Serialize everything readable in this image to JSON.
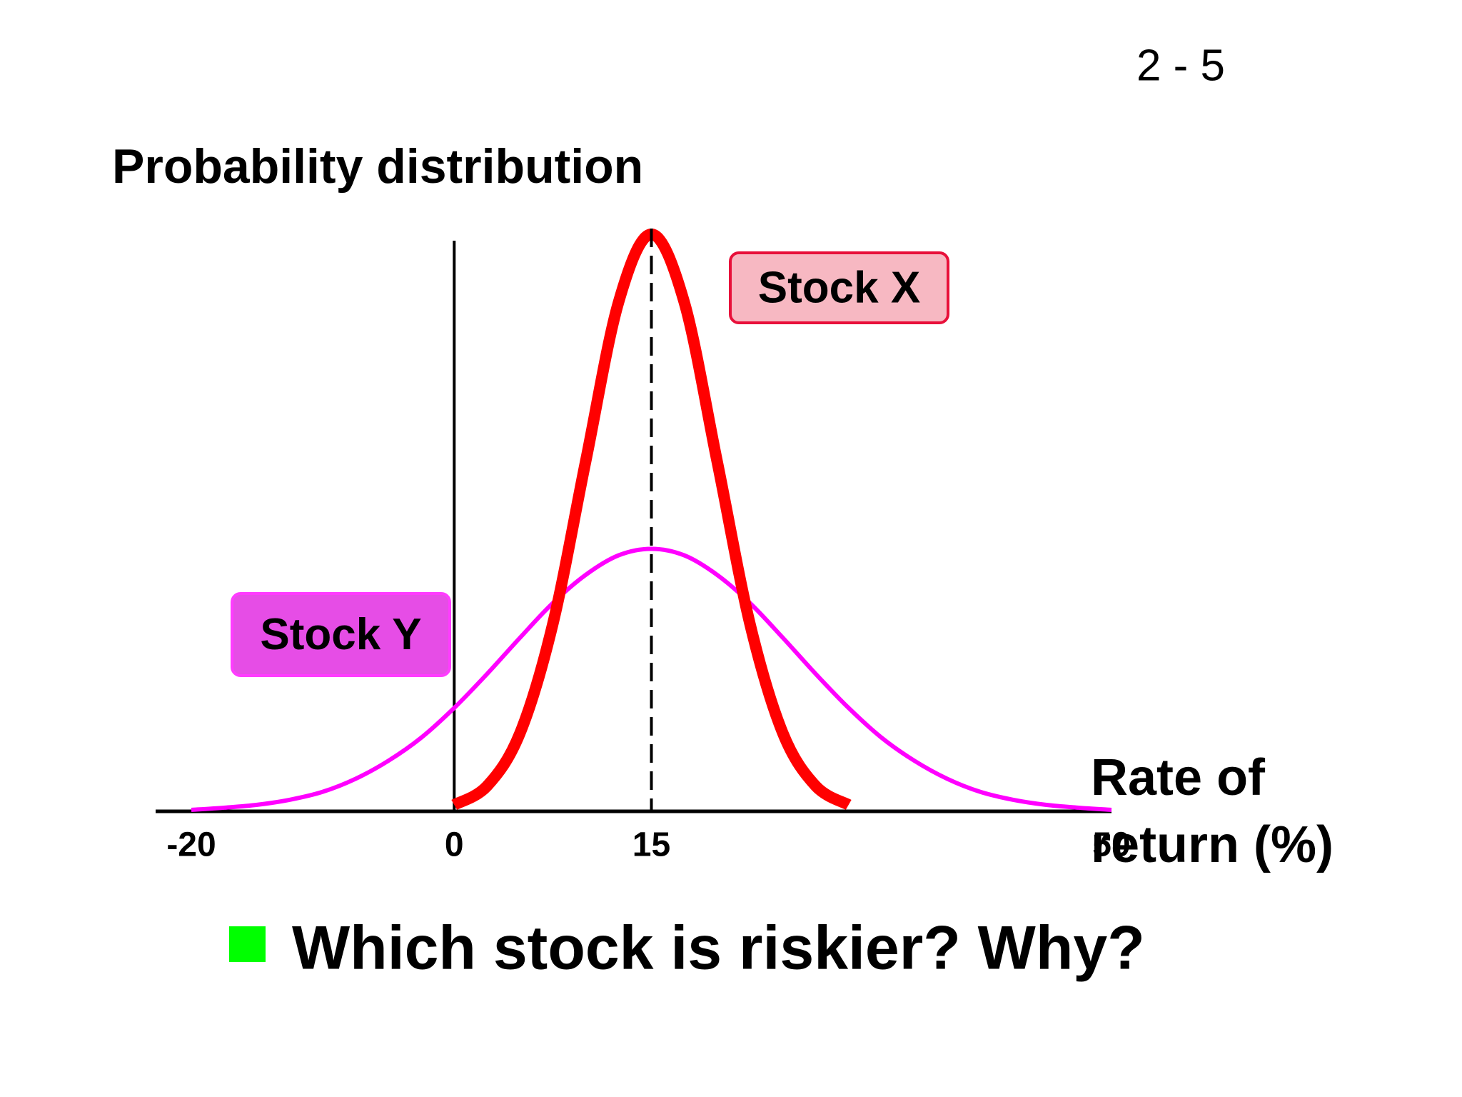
{
  "slide_number": "2 - 5",
  "bullet": "Which stock is riskier?  Why?",
  "chart_data": {
    "type": "line",
    "title": "Probability distribution",
    "xlabel": [
      "Rate of",
      "return (%)"
    ],
    "x": [
      -20,
      -17.5,
      -15,
      -12.5,
      -10,
      -7.5,
      -5,
      -2.5,
      0,
      2.5,
      5,
      7.5,
      10,
      12.5,
      15,
      17.5,
      20,
      22.5,
      25,
      27.5,
      30,
      32.5,
      35,
      37.5,
      40,
      42.5,
      45,
      47.5,
      50
    ],
    "series": [
      {
        "name": "Stock X",
        "color": "#ff0000",
        "values": [
          null,
          null,
          null,
          null,
          null,
          null,
          null,
          null,
          0.0009,
          0.0035,
          0.0108,
          0.0259,
          0.0484,
          0.0704,
          0.0798,
          0.0704,
          0.0484,
          0.0259,
          0.0108,
          0.0035,
          0.0009,
          null,
          null,
          null,
          null,
          null,
          null,
          null,
          null
        ]
      },
      {
        "name": "Stock Y",
        "color": "#ff00ff",
        "values": [
          0.0002,
          0.0005,
          0.0009,
          0.0016,
          0.0027,
          0.0045,
          0.007,
          0.0102,
          0.0143,
          0.019,
          0.024,
          0.0288,
          0.0327,
          0.0354,
          0.0363,
          0.0354,
          0.0327,
          0.0288,
          0.024,
          0.019,
          0.0143,
          0.0102,
          0.007,
          0.0045,
          0.0027,
          0.0016,
          0.0009,
          0.0005,
          0.0002
        ]
      }
    ],
    "mean": 15,
    "xlim": [
      -20,
      50
    ],
    "xticks": [
      -20,
      0,
      15,
      50
    ],
    "ylim": [
      0,
      0.08
    ]
  }
}
